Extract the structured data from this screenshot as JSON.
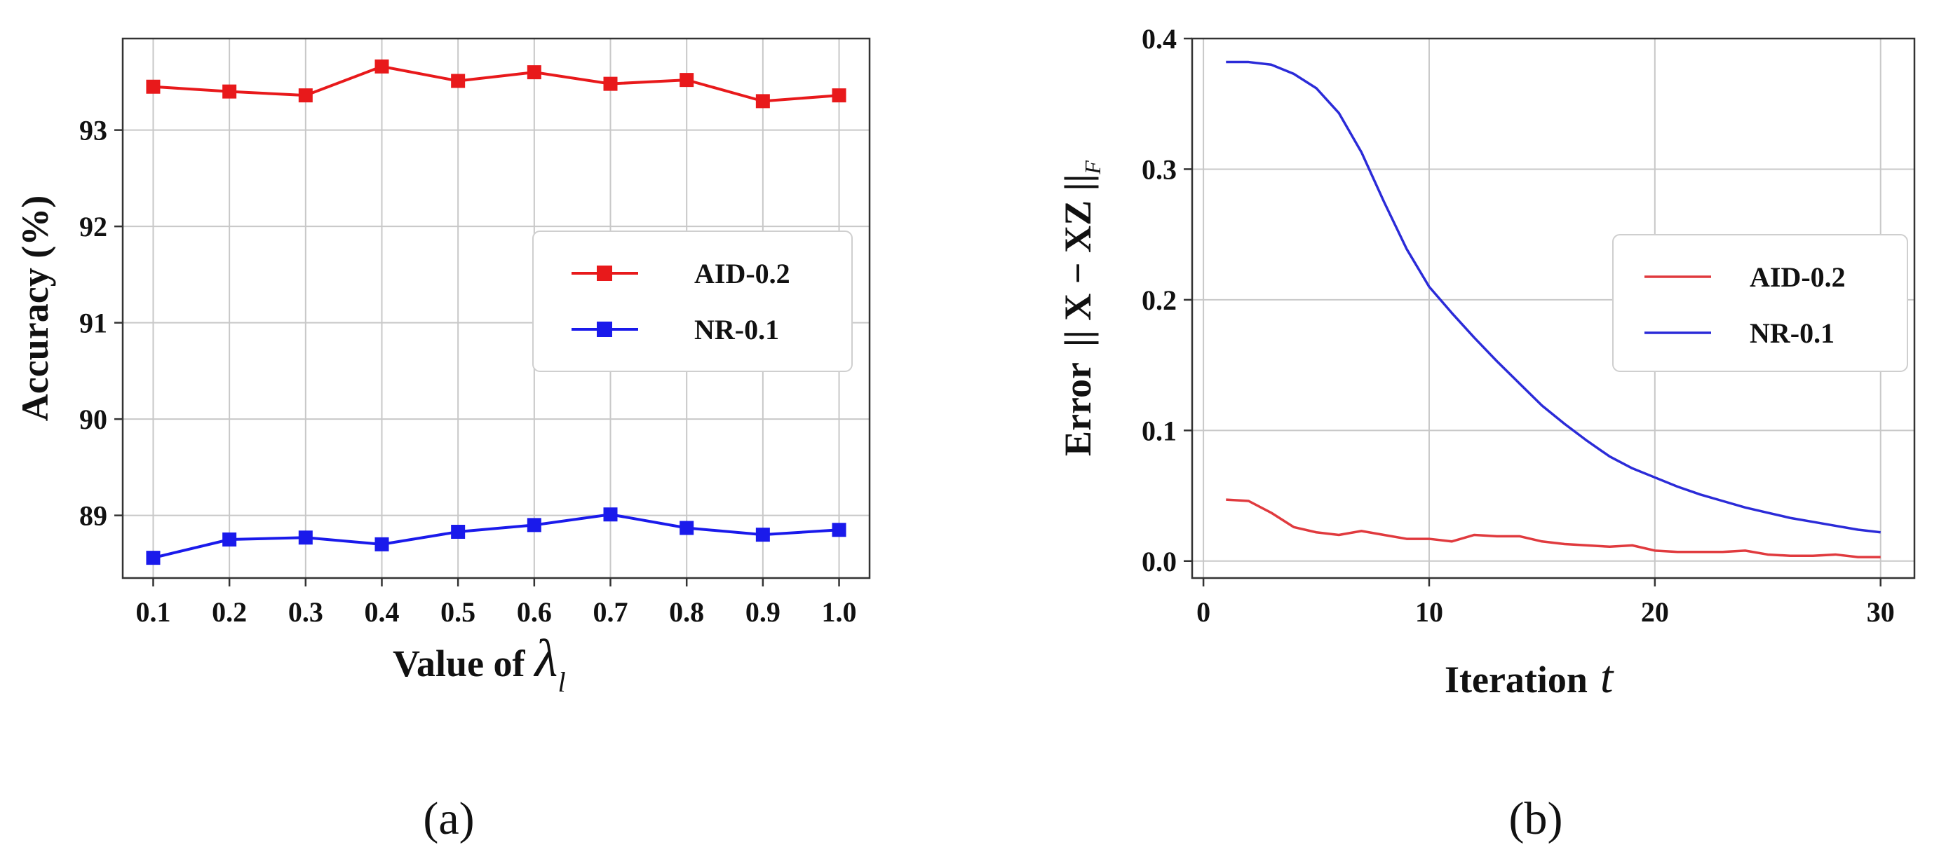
{
  "chart_data": [
    {
      "type": "line",
      "panel_label": "(a)",
      "title": "",
      "xlabel": "Value of",
      "xlabel_symbol": "λ",
      "xlabel_subscript": "l",
      "ylabel": "Accuracy (%)",
      "categories": [
        "0.1",
        "0.2",
        "0.3",
        "0.4",
        "0.5",
        "0.6",
        "0.7",
        "0.8",
        "0.9",
        "1.0"
      ],
      "x": [
        0.1,
        0.2,
        0.3,
        0.4,
        0.5,
        0.6,
        0.7,
        0.8,
        0.9,
        1.0
      ],
      "xlim": [
        0.06,
        1.04
      ],
      "ylim": [
        88.35,
        93.95
      ],
      "yticks": [
        "89",
        "90",
        "91",
        "92",
        "93"
      ],
      "ytick_values": [
        89,
        90,
        91,
        92,
        93
      ],
      "grid": true,
      "legend_position": "center-right",
      "series": [
        {
          "name": "AID-0.2",
          "color": "#e8191b",
          "marker": "square",
          "values": [
            93.45,
            93.4,
            93.36,
            93.66,
            93.51,
            93.6,
            93.48,
            93.52,
            93.3,
            93.36
          ]
        },
        {
          "name": "NR-0.1",
          "color": "#1a1aeb",
          "marker": "square",
          "values": [
            88.56,
            88.75,
            88.77,
            88.7,
            88.83,
            88.9,
            89.01,
            88.87,
            88.8,
            88.85
          ]
        }
      ]
    },
    {
      "type": "line",
      "panel_label": "(b)",
      "title": "",
      "xlabel": "Iteration",
      "xlabel_symbol": "t",
      "ylabel": "Error",
      "ylabel_math": "|| X − XZ ||",
      "ylabel_subscript": "F",
      "xlim": [
        -0.5,
        31.5
      ],
      "ylim": [
        -0.013,
        0.4
      ],
      "xticks": [
        "0",
        "10",
        "20",
        "30"
      ],
      "xtick_values": [
        0,
        10,
        20,
        30
      ],
      "yticks": [
        "0.0",
        "0.1",
        "0.2",
        "0.3",
        "0.4"
      ],
      "ytick_values": [
        0.0,
        0.1,
        0.2,
        0.3,
        0.4
      ],
      "grid": true,
      "legend_position": "center-right",
      "x": [
        1,
        2,
        3,
        4,
        5,
        6,
        7,
        8,
        9,
        10,
        11,
        12,
        13,
        14,
        15,
        16,
        17,
        18,
        19,
        20,
        21,
        22,
        23,
        24,
        25,
        26,
        27,
        28,
        29,
        30
      ],
      "series": [
        {
          "name": "AID-0.2",
          "color": "#e03a3e",
          "values": [
            0.047,
            0.046,
            0.037,
            0.026,
            0.022,
            0.02,
            0.023,
            0.02,
            0.017,
            0.017,
            0.015,
            0.02,
            0.019,
            0.019,
            0.015,
            0.013,
            0.012,
            0.011,
            0.012,
            0.008,
            0.007,
            0.007,
            0.007,
            0.008,
            0.005,
            0.004,
            0.004,
            0.005,
            0.003,
            0.003
          ]
        },
        {
          "name": "NR-0.1",
          "color": "#2b2bd8",
          "values": [
            0.382,
            0.382,
            0.38,
            0.373,
            0.362,
            0.343,
            0.313,
            0.275,
            0.239,
            0.21,
            0.19,
            0.171,
            0.153,
            0.136,
            0.119,
            0.105,
            0.092,
            0.08,
            0.071,
            0.064,
            0.057,
            0.051,
            0.046,
            0.041,
            0.037,
            0.033,
            0.03,
            0.027,
            0.024,
            0.022
          ]
        }
      ]
    }
  ]
}
